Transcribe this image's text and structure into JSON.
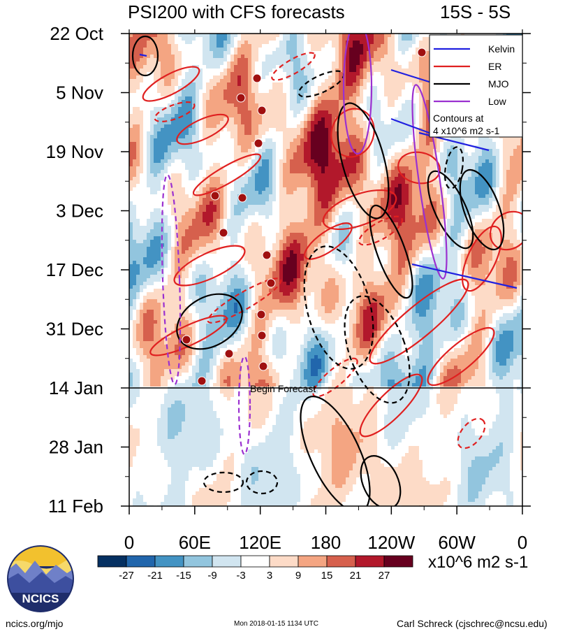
{
  "header": {
    "title": "PSI200 with CFS forecasts",
    "lat_band": "15S - 5S"
  },
  "chart_data": {
    "type": "heatmap",
    "title": "PSI200 with CFS forecasts",
    "subtitle": "15S - 5S",
    "x_ticks": [
      "0",
      "60E",
      "120E",
      "180",
      "120W",
      "60W",
      "0"
    ],
    "x_range_deg": [
      0,
      360
    ],
    "y_ticks": [
      "22 Oct",
      "5 Nov",
      "19 Nov",
      "3 Dec",
      "17 Dec",
      "31 Dec",
      "14 Jan",
      "28 Jan",
      "11 Feb"
    ],
    "y_range": [
      "2017-10-22",
      "2018-02-11"
    ],
    "forecast_start": "2018-01-14",
    "forecast_label": "Begin Forecast",
    "colorbar": {
      "labels": [
        "-27",
        "-21",
        "-15",
        "-9",
        "-3",
        "3",
        "9",
        "15",
        "21",
        "27"
      ],
      "colors": [
        "#053061",
        "#2166ac",
        "#4393c3",
        "#92c5de",
        "#d1e5f0",
        "#ffffff",
        "#fddbc7",
        "#f4a582",
        "#d6604d",
        "#b2182b",
        "#67001f"
      ],
      "units": "x10^6 m2 s-1"
    },
    "legend": {
      "placement": "top-right",
      "entries": [
        {
          "name": "Kelvin",
          "color": "#2020e0"
        },
        {
          "name": "ER",
          "color": "#e02020"
        },
        {
          "name": "MJO",
          "color": "#000000"
        },
        {
          "name": "Low",
          "color": "#9b30d0"
        }
      ],
      "note_lines": [
        "Contours at",
        "4 x10^6 m2 s-1"
      ]
    }
  },
  "logo": {
    "text": "NCICS"
  },
  "footer": {
    "left": "ncics.org/mjo",
    "center": "Mon 2018-01-15 1134 UTC",
    "right": "Carl Schreck (cjschrec@ncsu.edu)"
  }
}
